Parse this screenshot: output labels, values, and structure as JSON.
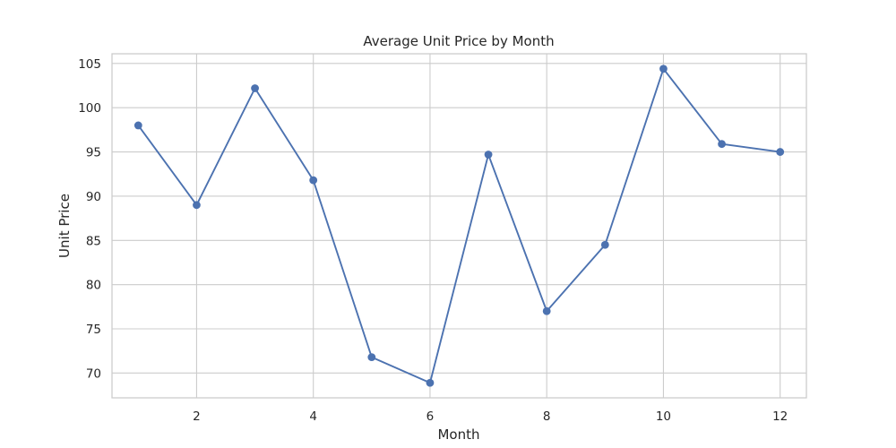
{
  "chart_data": {
    "type": "line",
    "title": "Average Unit Price by Month",
    "xlabel": "Month",
    "ylabel": "Unit Price",
    "xlim": [
      0.55,
      12.45
    ],
    "ylim": [
      67.2,
      106.1
    ],
    "xticks": [
      2,
      4,
      6,
      8,
      10,
      12
    ],
    "yticks": [
      70,
      75,
      80,
      85,
      90,
      95,
      100,
      105
    ],
    "grid": true,
    "series": [
      {
        "x": [
          1,
          2,
          3,
          4,
          5,
          6,
          7,
          8,
          9,
          10,
          11,
          12
        ],
        "values": [
          98.0,
          89.0,
          102.2,
          91.8,
          71.8,
          68.9,
          94.7,
          77.0,
          84.5,
          104.4,
          95.9,
          95.0
        ],
        "color": "#4c72b0",
        "marker": "circle"
      }
    ]
  }
}
